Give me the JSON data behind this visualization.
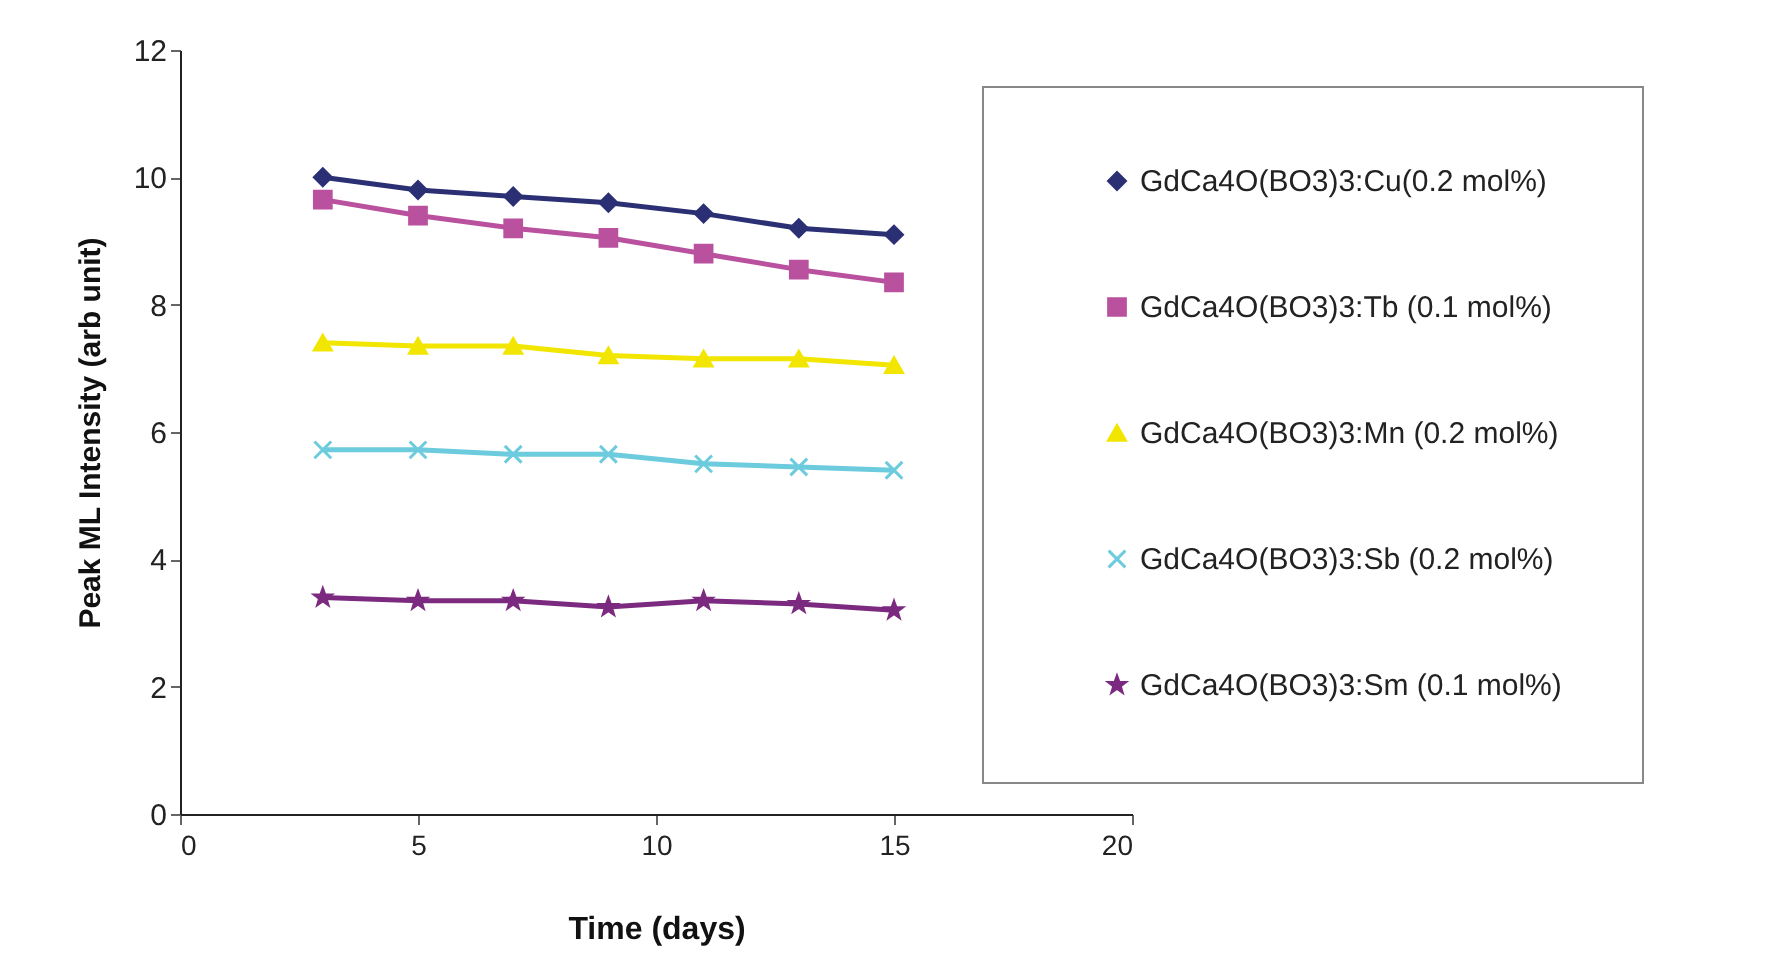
{
  "chart_data": {
    "type": "line",
    "xlabel": "Time (days)",
    "ylabel": "Peak ML Intensity (arb unit)",
    "x": [
      3,
      5,
      7,
      9,
      11,
      13,
      15
    ],
    "xlim": [
      0,
      20
    ],
    "xticks": [
      0,
      5,
      10,
      15,
      20
    ],
    "ylim": [
      0,
      12
    ],
    "yticks": [
      0,
      2,
      4,
      6,
      8,
      10,
      12
    ],
    "grid": false,
    "legend": "right",
    "line_style": "solid",
    "series": [
      {
        "name": "GdCa4O(BO3)3:Cu(0.2 mol%)",
        "color": "#2b2f73",
        "marker": "diamond",
        "values": [
          10.0,
          9.8,
          9.7,
          9.6,
          9.43,
          9.2,
          9.1
        ]
      },
      {
        "name": "GdCa4O(BO3)3:Tb (0.1 mol%)",
        "color": "#b9519e",
        "marker": "square",
        "values": [
          9.65,
          9.4,
          9.2,
          9.05,
          8.8,
          8.55,
          8.35
        ]
      },
      {
        "name": "GdCa4O(BO3)3:Mn (0.2 mol%)",
        "color": "#f2e600",
        "marker": "triangle",
        "values": [
          7.4,
          7.35,
          7.35,
          7.2,
          7.15,
          7.15,
          7.05
        ]
      },
      {
        "name": "GdCa4O(BO3)3:Sb (0.2 mol%)",
        "color": "#6ccbdc",
        "marker": "cross",
        "values": [
          5.72,
          5.72,
          5.65,
          5.65,
          5.5,
          5.45,
          5.4
        ]
      },
      {
        "name": "GdCa4O(BO3)3:Sm (0.1 mol%)",
        "color": "#7b2a80",
        "marker": "star",
        "values": [
          3.4,
          3.35,
          3.35,
          3.25,
          3.35,
          3.3,
          3.2
        ]
      }
    ]
  }
}
